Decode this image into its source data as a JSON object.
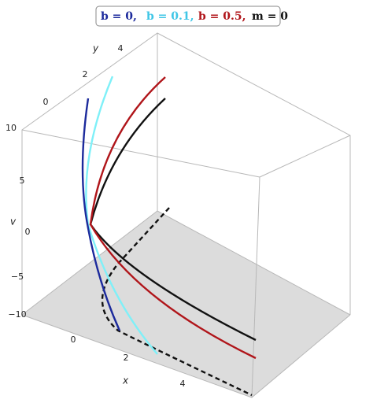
{
  "legend": {
    "entries": [
      {
        "label": "b = 0,",
        "color": "#1c2a9c"
      },
      {
        "label": "b = 0.1,",
        "color": "#3fc6e6"
      },
      {
        "label": "b = 0.5,",
        "color": "#b0151a"
      },
      {
        "label": "m = 0",
        "color": "#111111"
      }
    ]
  },
  "axes": {
    "x": {
      "label": "x",
      "ticks": [
        "0",
        "2",
        "4"
      ]
    },
    "y": {
      "label": "y",
      "ticks": [
        "0",
        "2",
        "4"
      ]
    },
    "v": {
      "label": "v",
      "ticks": [
        "10",
        "5",
        "0",
        "−5",
        "−10"
      ]
    }
  }
}
